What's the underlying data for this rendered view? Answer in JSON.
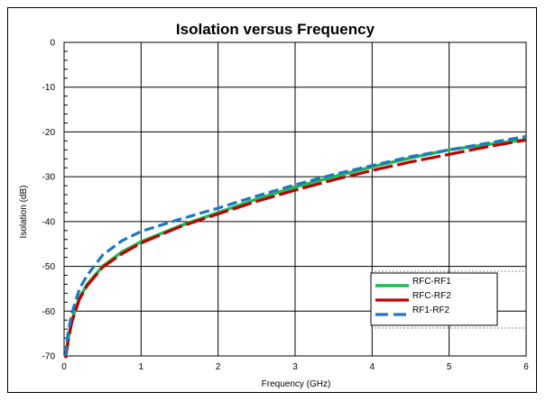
{
  "chart_data": {
    "type": "line",
    "title": "Isolation versus Frequency",
    "xlabel": "Frequency  (GHz)",
    "ylabel": "Isolation (dB)",
    "xlim": [
      0,
      6
    ],
    "ylim": [
      -70,
      0
    ],
    "x_ticks": [
      0,
      1,
      2,
      3,
      4,
      5,
      6
    ],
    "y_ticks": [
      0,
      -10,
      -20,
      -30,
      -40,
      -50,
      -60,
      -70
    ],
    "grid": true,
    "legend_position": "bottom-right",
    "series": [
      {
        "name": "RFC-RF1",
        "color": "#1db954",
        "style": "solid",
        "x": [
          0.02,
          0.05,
          0.1,
          0.2,
          0.3,
          0.5,
          0.75,
          1,
          1.5,
          2,
          2.5,
          3,
          3.5,
          4,
          4.5,
          5,
          5.5,
          6
        ],
        "y": [
          -70,
          -66.5,
          -62,
          -57,
          -54,
          -50,
          -46.8,
          -44.5,
          -41,
          -38,
          -35,
          -32.3,
          -30,
          -27.8,
          -25.8,
          -24,
          -22.8,
          -21.7
        ]
      },
      {
        "name": "RFC-RF2",
        "color": "#c00000",
        "style": "long-dash",
        "x": [
          0.02,
          0.05,
          0.1,
          0.2,
          0.3,
          0.5,
          0.75,
          1,
          1.5,
          2,
          2.5,
          3,
          3.5,
          4,
          4.5,
          5,
          5.5,
          6
        ],
        "y": [
          -70.5,
          -67,
          -62.5,
          -57.3,
          -54.3,
          -50.2,
          -47.2,
          -44.8,
          -41.2,
          -38.3,
          -35.5,
          -33,
          -30.7,
          -28.6,
          -26.7,
          -25,
          -23.3,
          -21.8
        ]
      },
      {
        "name": "RF1-RF2",
        "color": "#1f77c4",
        "style": "dash",
        "x": [
          0.02,
          0.05,
          0.1,
          0.2,
          0.3,
          0.5,
          0.75,
          1,
          1.5,
          2,
          2.5,
          3,
          3.5,
          4,
          4.5,
          5,
          5.5,
          6
        ],
        "y": [
          -70,
          -65,
          -60.5,
          -55,
          -52,
          -47.5,
          -44.3,
          -42.2,
          -39.5,
          -37,
          -34.3,
          -31.8,
          -29.5,
          -27.5,
          -25.5,
          -24,
          -22.5,
          -21
        ]
      }
    ]
  }
}
